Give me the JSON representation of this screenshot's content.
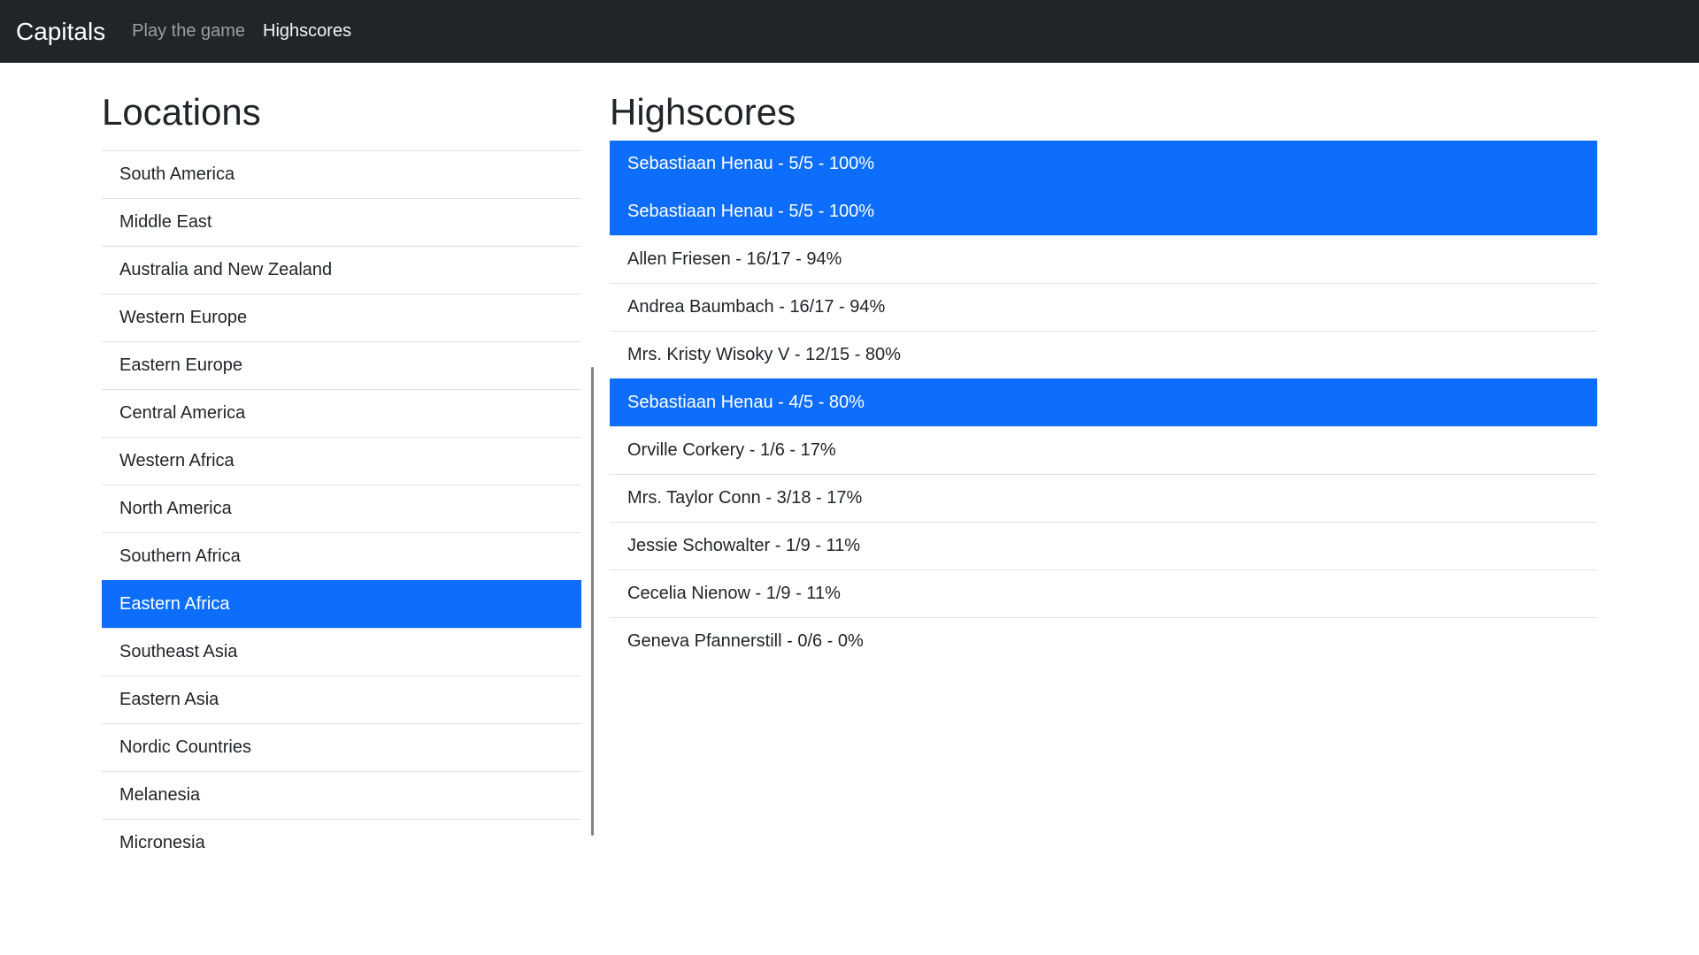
{
  "navbar": {
    "brand": "Capitals",
    "links": [
      {
        "label": "Play the game",
        "active": false
      },
      {
        "label": "Highscores",
        "active": true
      }
    ]
  },
  "locations": {
    "title": "Locations",
    "items": [
      {
        "label": "South America",
        "active": false
      },
      {
        "label": "Middle East",
        "active": false
      },
      {
        "label": "Australia and New Zealand",
        "active": false
      },
      {
        "label": "Western Europe",
        "active": false
      },
      {
        "label": "Eastern Europe",
        "active": false
      },
      {
        "label": "Central America",
        "active": false
      },
      {
        "label": "Western Africa",
        "active": false
      },
      {
        "label": "North America",
        "active": false
      },
      {
        "label": "Southern Africa",
        "active": false
      },
      {
        "label": "Eastern Africa",
        "active": true
      },
      {
        "label": "Southeast Asia",
        "active": false
      },
      {
        "label": "Eastern Asia",
        "active": false
      },
      {
        "label": "Nordic Countries",
        "active": false
      },
      {
        "label": "Melanesia",
        "active": false
      },
      {
        "label": "Micronesia",
        "active": false
      }
    ]
  },
  "highscores": {
    "title": "Highscores",
    "items": [
      {
        "label": "Sebastiaan Henau - 5/5 - 100%",
        "active": true
      },
      {
        "label": "Sebastiaan Henau - 5/5 - 100%",
        "active": true
      },
      {
        "label": "Allen Friesen - 16/17 - 94%",
        "active": false
      },
      {
        "label": "Andrea Baumbach - 16/17 - 94%",
        "active": false
      },
      {
        "label": "Mrs. Kristy Wisoky V - 12/15 - 80%",
        "active": false
      },
      {
        "label": "Sebastiaan Henau - 4/5 - 80%",
        "active": true
      },
      {
        "label": "Orville Corkery - 1/6 - 17%",
        "active": false
      },
      {
        "label": "Mrs. Taylor Conn - 3/18 - 17%",
        "active": false
      },
      {
        "label": "Jessie Schowalter - 1/9 - 11%",
        "active": false
      },
      {
        "label": "Cecelia Nienow - 1/9 - 11%",
        "active": false
      },
      {
        "label": "Geneva Pfannerstill - 0/6 - 0%",
        "active": false
      }
    ]
  },
  "colors": {
    "accent": "#0d6efd",
    "navbar_bg": "#212529",
    "divider": "#dee2e6",
    "scrollbar_thumb": "#8a7f7f",
    "text": "#212529",
    "navbar_link_muted": "rgba(255,255,255,0.55)",
    "navbar_link_active": "rgba(255,255,255,0.95)"
  }
}
